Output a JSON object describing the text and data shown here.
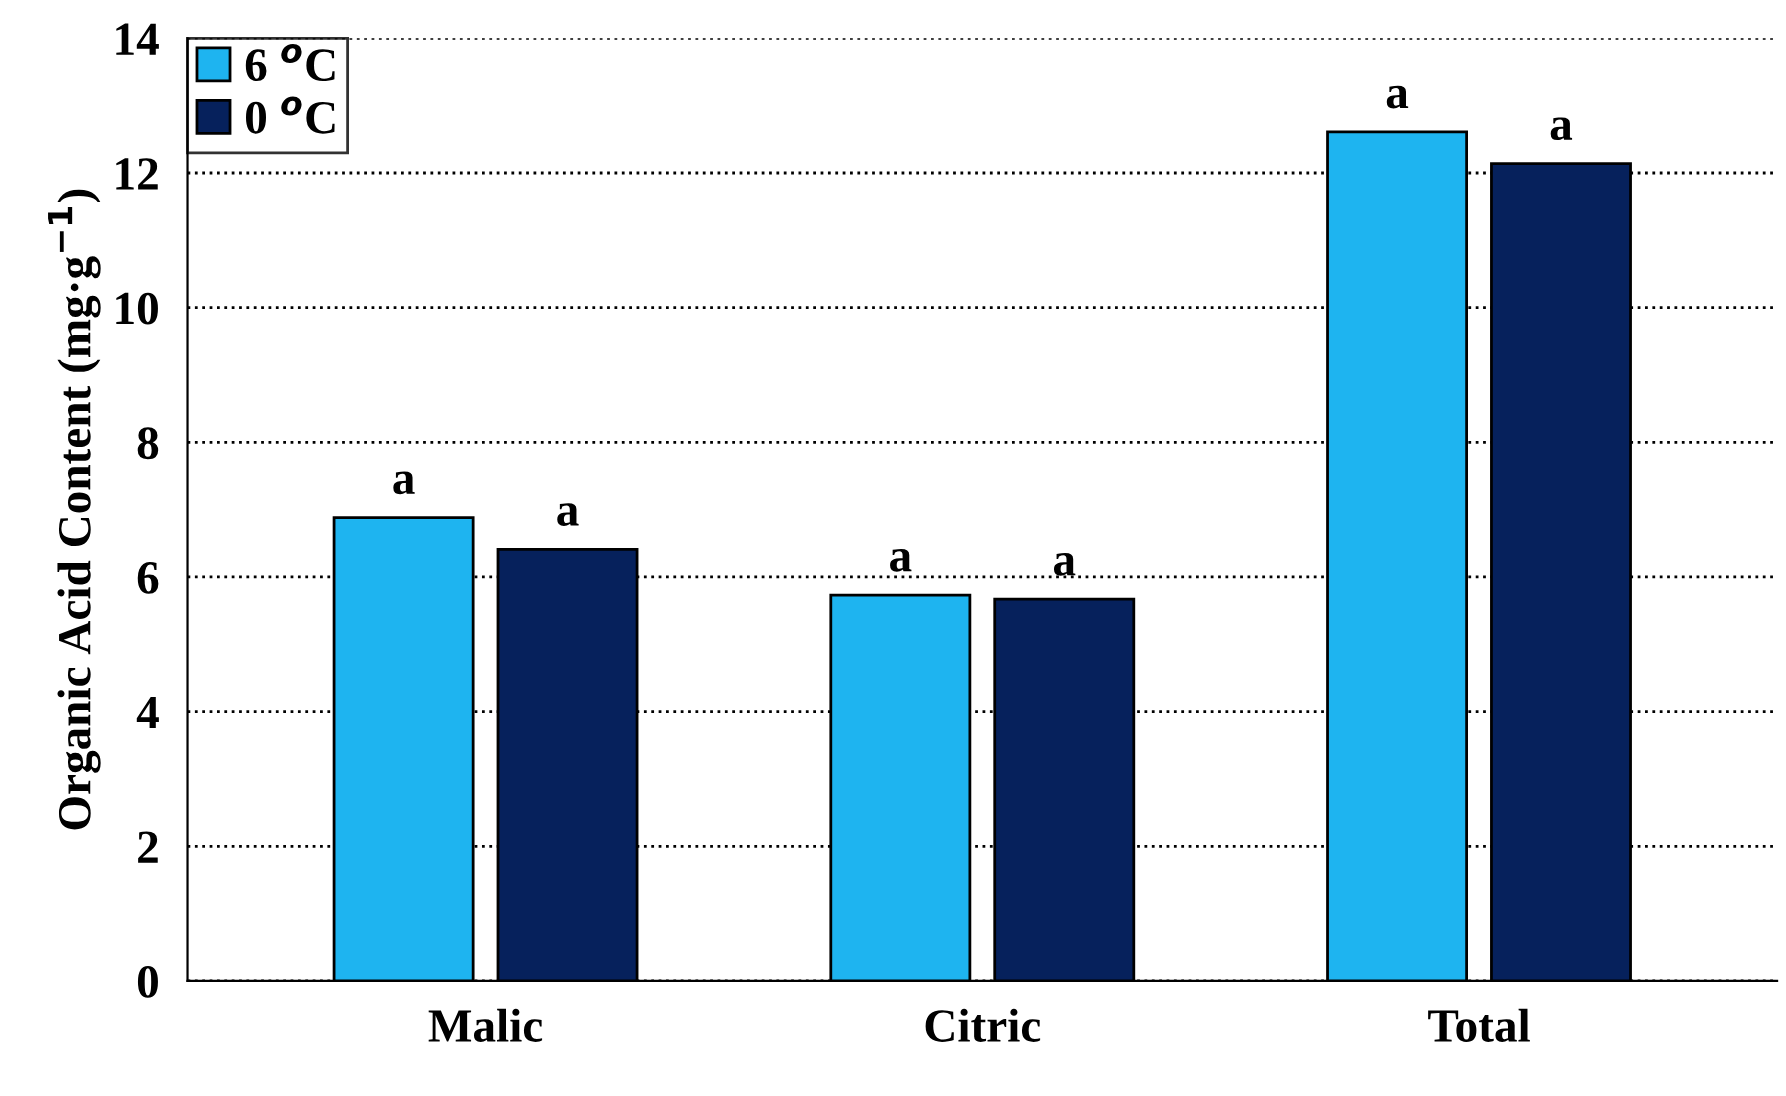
{
  "chart_data": {
    "type": "bar",
    "ylabel": "Organic Acid Content (mg·g$^{−1}$)",
    "categories": [
      "Malic",
      "Citric",
      "Total"
    ],
    "series": [
      {
        "name": "6 $^{o}$C",
        "color": "#1eb4f0",
        "values": [
          6.88,
          5.73,
          12.61
        ],
        "value_labels": [
          "a",
          "a",
          "a"
        ]
      },
      {
        "name": "0 $^{o}$C",
        "color": "#06215c",
        "values": [
          6.41,
          5.67,
          12.14
        ],
        "value_labels": [
          "a",
          "a",
          "a"
        ]
      }
    ],
    "ylim": [
      0,
      14
    ],
    "yticks": [
      0,
      2,
      4,
      6,
      8,
      10,
      12,
      14
    ],
    "grid": "y",
    "legend": "top left"
  }
}
